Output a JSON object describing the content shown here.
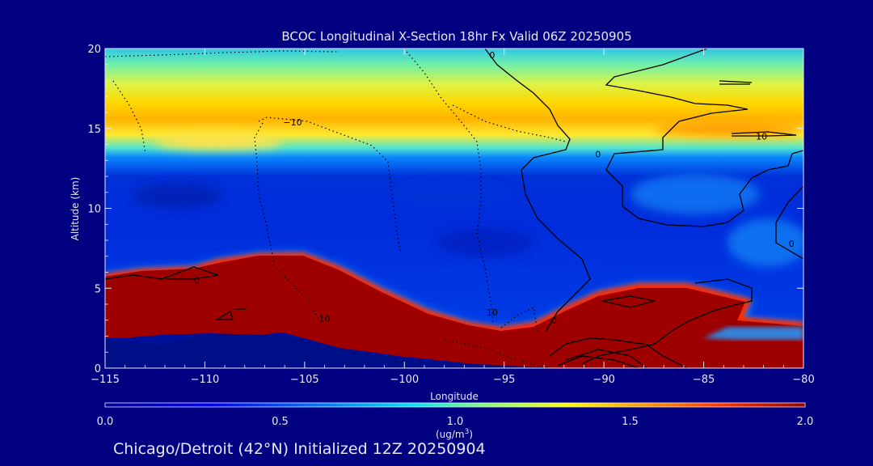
{
  "chart_data": {
    "type": "heatmap",
    "title": "BCOC Longitudinal X-Section 18hr  Fx Valid 06Z 20250905",
    "xlabel": "Longitude",
    "ylabel": "Altitude (km)",
    "xlim": [
      -115,
      -80
    ],
    "ylim": [
      0,
      20
    ],
    "x_ticks": [
      -115,
      -110,
      -105,
      -100,
      -95,
      -90,
      -85,
      -80
    ],
    "y_ticks": [
      0,
      5,
      10,
      15,
      20
    ],
    "x_tick_labels": [
      "−115",
      "−110",
      "−105",
      "−100",
      "−95",
      "−90",
      "−85",
      "−80"
    ],
    "y_tick_labels": [
      "0",
      "5",
      "10",
      "15",
      "20"
    ],
    "colorbar": {
      "min": 0.0,
      "max": 2.0,
      "ticks": [
        "0.0",
        "0.5",
        "1.0",
        "1.5",
        "2.0"
      ],
      "units_label": "(ug/m",
      "units_sup": "3",
      "units_close": ")"
    },
    "contour_labels": [
      {
        "text": "0",
        "lon": -95.6,
        "alt": 19.6
      },
      {
        "text": "−10",
        "lon": -105.6,
        "alt": 15.4
      },
      {
        "text": "0",
        "lon": -90.3,
        "alt": 13.4
      },
      {
        "text": "10",
        "lon": -82.1,
        "alt": 14.5
      },
      {
        "text": "0",
        "lon": -110.4,
        "alt": 5.5
      },
      {
        "text": "10",
        "lon": -104.0,
        "alt": 3.1
      },
      {
        "text": "10",
        "lon": -95.6,
        "alt": 3.5
      },
      {
        "text": "0",
        "lon": -92.5,
        "alt": 3.0
      },
      {
        "text": "0",
        "lon": -80.6,
        "alt": 7.8
      }
    ],
    "subtitle": "Chicago/Detroit (42°N) Initialized 12Z 20250904",
    "features": {
      "high_layer_alt_km": 15,
      "mid_trough_alt_km": [
        11,
        13
      ],
      "low_plume_top_km": [
        7.2,
        2.3,
        5.2
      ]
    }
  },
  "colors": {
    "background": "#000080",
    "axis": "#e8e8ff",
    "colormap": [
      "#00009a",
      "#0000ff",
      "#0080ff",
      "#00e5ff",
      "#80ff80",
      "#ffff00",
      "#ff9900",
      "#ff3300",
      "#990000"
    ]
  }
}
